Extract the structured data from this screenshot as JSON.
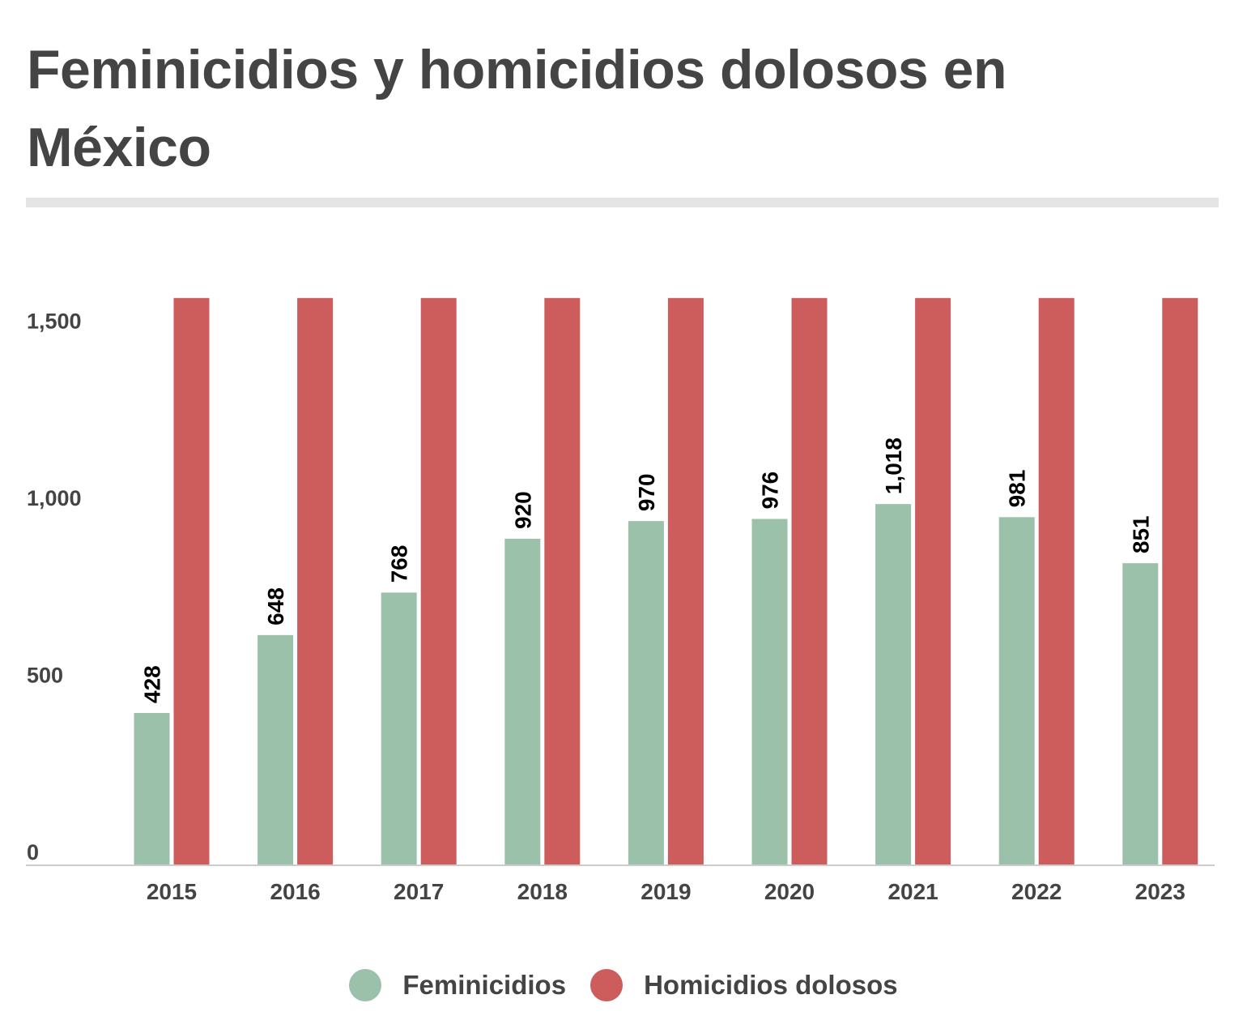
{
  "title": "Feminicidios y homicidios dolosos en México",
  "colors": {
    "feminicidios": "#9bc1ab",
    "homicidios": "#cd5c5c",
    "text": "#444444",
    "baseline": "#cccccc"
  },
  "legend": {
    "items": [
      {
        "label": "Feminicidios",
        "color": "#9bc1ab"
      },
      {
        "label": "Homicidios dolosos",
        "color": "#cd5c5c"
      }
    ]
  },
  "chart_data": {
    "type": "bar",
    "title": "Feminicidios y homicidios dolosos en México",
    "xlabel": "",
    "ylabel": "",
    "categories": [
      "2015",
      "2016",
      "2017",
      "2018",
      "2019",
      "2020",
      "2021",
      "2022",
      "2023"
    ],
    "yticks": [
      {
        "value": 0,
        "label": "0"
      },
      {
        "value": 500,
        "label": "500"
      },
      {
        "value": 1000,
        "label": "1,000"
      },
      {
        "value": 1500,
        "label": "1,500"
      }
    ],
    "ylim": [
      0,
      1600
    ],
    "grid": false,
    "legend_position": "bottom-center",
    "series": [
      {
        "name": "Feminicidios",
        "color": "#9bc1ab",
        "values": [
          428,
          648,
          768,
          920,
          970,
          976,
          1018,
          981,
          851
        ],
        "labels": [
          "428",
          "648",
          "768",
          "920",
          "970",
          "976",
          "1,018",
          "981",
          "851"
        ]
      },
      {
        "name": "Homicidios dolosos",
        "color": "#cd5c5c",
        "values": [
          1600,
          1600,
          1600,
          1600,
          1600,
          1600,
          1600,
          1600,
          1600
        ],
        "clipped_at_axis_max": true
      }
    ]
  }
}
